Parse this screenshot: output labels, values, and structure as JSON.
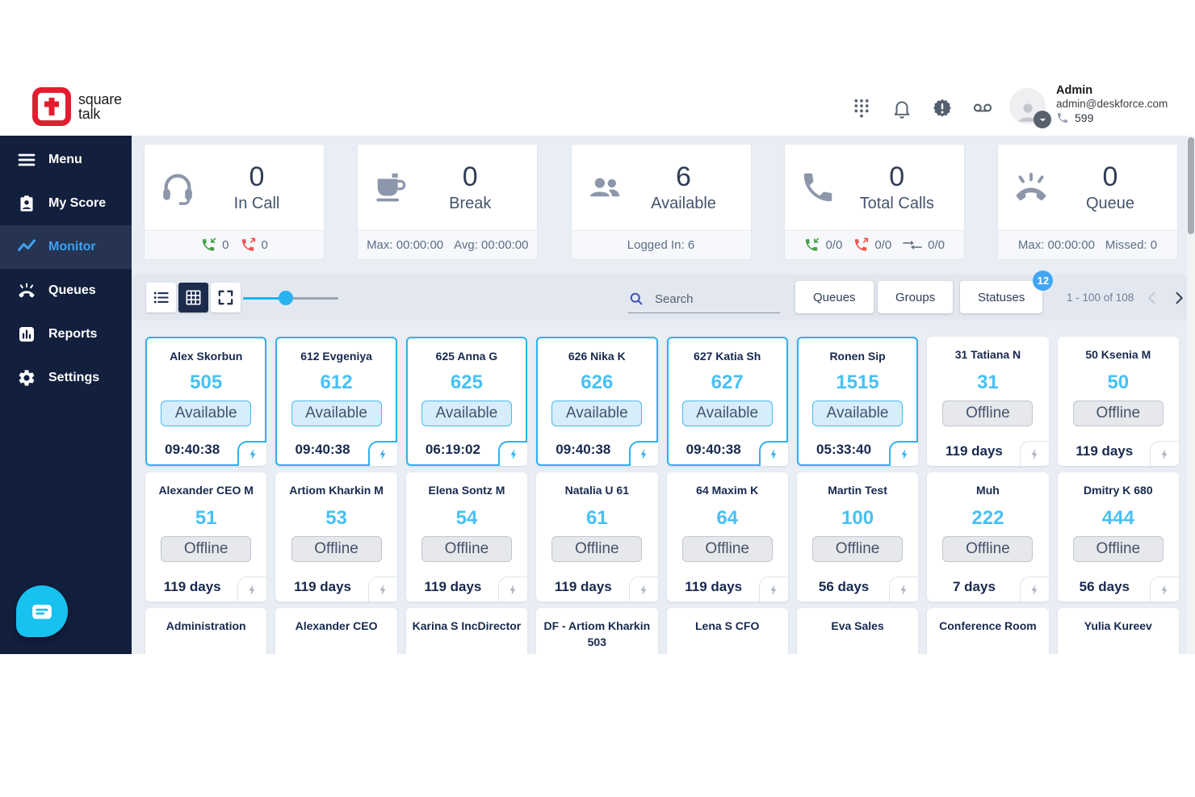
{
  "colors": {
    "accent_blue": "#2fb1ef",
    "extension_blue": "#47c0f5",
    "sidebar_navy": "#121f3d",
    "logo_red": "#e51c2f",
    "badge_blue": "#42a5f5",
    "incoming_green": "#43a047",
    "outgoing_red": "#ef5350"
  },
  "brand": {
    "logo_top": "square",
    "logo_bottom": "talk"
  },
  "header": {
    "icons": [
      {
        "name": "dialpad-icon"
      },
      {
        "name": "notifications-bell-icon"
      },
      {
        "name": "alert-badge-icon"
      },
      {
        "name": "voicemail-icon"
      }
    ],
    "user": {
      "name": "Admin",
      "email": "admin@deskforce.com",
      "extension": "599"
    }
  },
  "sidebar": {
    "items": [
      {
        "label": "Menu",
        "icon": "menu-icon",
        "active": false
      },
      {
        "label": "My Score",
        "icon": "my-score-icon",
        "active": false
      },
      {
        "label": "Monitor",
        "icon": "monitor-icon",
        "active": true
      },
      {
        "label": "Queues",
        "icon": "queues-icon",
        "active": false
      },
      {
        "label": "Reports",
        "icon": "reports-icon",
        "active": false
      },
      {
        "label": "Settings",
        "icon": "settings-icon",
        "active": false
      }
    ]
  },
  "stats": [
    {
      "icon": "headset-icon",
      "value": "0",
      "label": "In Call",
      "footer": {
        "items": [
          {
            "icon": "incoming-call-icon",
            "text": "0"
          },
          {
            "icon": "outgoing-call-icon",
            "text": "0"
          }
        ]
      }
    },
    {
      "icon": "coffee-break-icon",
      "value": "0",
      "label": "Break",
      "footer": {
        "texts": [
          "Max: 00:00:00",
          "Avg: 00:00:00"
        ]
      }
    },
    {
      "icon": "people-icon",
      "value": "6",
      "label": "Available",
      "footer": {
        "texts": [
          "Logged In: 6"
        ]
      }
    },
    {
      "icon": "phone-icon",
      "value": "0",
      "label": "Total Calls",
      "footer": {
        "items": [
          {
            "icon": "incoming-call-icon",
            "text": "0/0"
          },
          {
            "icon": "outgoing-call-icon",
            "text": "0/0"
          },
          {
            "icon": "internal-call-icon",
            "text": "0/0"
          }
        ]
      }
    },
    {
      "icon": "hangup-phone-icon",
      "value": "0",
      "label": "Queue",
      "footer": {
        "texts": [
          "Max: 00:00:00",
          "Missed: 0"
        ]
      }
    }
  ],
  "toolbar": {
    "view_buttons": [
      {
        "name": "list-view",
        "icon": "list-view-icon",
        "active": false
      },
      {
        "name": "grid-view",
        "icon": "grid-view-icon",
        "active": true
      },
      {
        "name": "fullscreen-view",
        "icon": "fullscreen-icon",
        "active": false
      }
    ],
    "zoom_slider_percent": 45,
    "search_placeholder": "Search",
    "filters": [
      {
        "label": "Queues"
      },
      {
        "label": "Groups"
      },
      {
        "label": "Statuses",
        "badge": "12"
      }
    ],
    "pagination": {
      "range_label": "1 - 100 of 108"
    }
  },
  "agents": [
    {
      "name": "Alex Skorbun",
      "ext": "505",
      "status": "Available",
      "duration": "09:40:38",
      "available": true
    },
    {
      "name": "612 Evgeniya",
      "ext": "612",
      "status": "Available",
      "duration": "09:40:38",
      "available": true
    },
    {
      "name": "625 Anna G",
      "ext": "625",
      "status": "Available",
      "duration": "06:19:02",
      "available": true
    },
    {
      "name": "626 Nika K",
      "ext": "626",
      "status": "Available",
      "duration": "09:40:38",
      "available": true
    },
    {
      "name": "627 Katia Sh",
      "ext": "627",
      "status": "Available",
      "duration": "09:40:38",
      "available": true
    },
    {
      "name": "Ronen Sip",
      "ext": "1515",
      "status": "Available",
      "duration": "05:33:40",
      "available": true
    },
    {
      "name": "31 Tatiana N",
      "ext": "31",
      "status": "Offline",
      "duration": "119 days",
      "available": false
    },
    {
      "name": "50 Ksenia M",
      "ext": "50",
      "status": "Offline",
      "duration": "119 days",
      "available": false
    },
    {
      "name": "Alexander CEO M",
      "ext": "51",
      "status": "Offline",
      "duration": "119 days",
      "available": false
    },
    {
      "name": "Artiom Kharkin M",
      "ext": "53",
      "status": "Offline",
      "duration": "119 days",
      "available": false
    },
    {
      "name": "Elena Sontz M",
      "ext": "54",
      "status": "Offline",
      "duration": "119 days",
      "available": false
    },
    {
      "name": "Natalia U 61",
      "ext": "61",
      "status": "Offline",
      "duration": "119 days",
      "available": false
    },
    {
      "name": "64 Maxim K",
      "ext": "64",
      "status": "Offline",
      "duration": "119 days",
      "available": false
    },
    {
      "name": "Martin Test",
      "ext": "100",
      "status": "Offline",
      "duration": "56 days",
      "available": false
    },
    {
      "name": "Muh",
      "ext": "222",
      "status": "Offline",
      "duration": "7 days",
      "available": false
    },
    {
      "name": "Dmitry K 680",
      "ext": "444",
      "status": "Offline",
      "duration": "56 days",
      "available": false
    },
    {
      "name": "Administration",
      "partial": true
    },
    {
      "name": "Alexander CEO",
      "partial": true
    },
    {
      "name": "Karina S IncDirector",
      "partial": true
    },
    {
      "name": "DF - Artiom Kharkin 503",
      "partial": true
    },
    {
      "name": "Lena S CFO",
      "partial": true
    },
    {
      "name": "Eva Sales",
      "partial": true
    },
    {
      "name": "Conference Room",
      "partial": true
    },
    {
      "name": "Yulia Kureev",
      "partial": true
    }
  ]
}
